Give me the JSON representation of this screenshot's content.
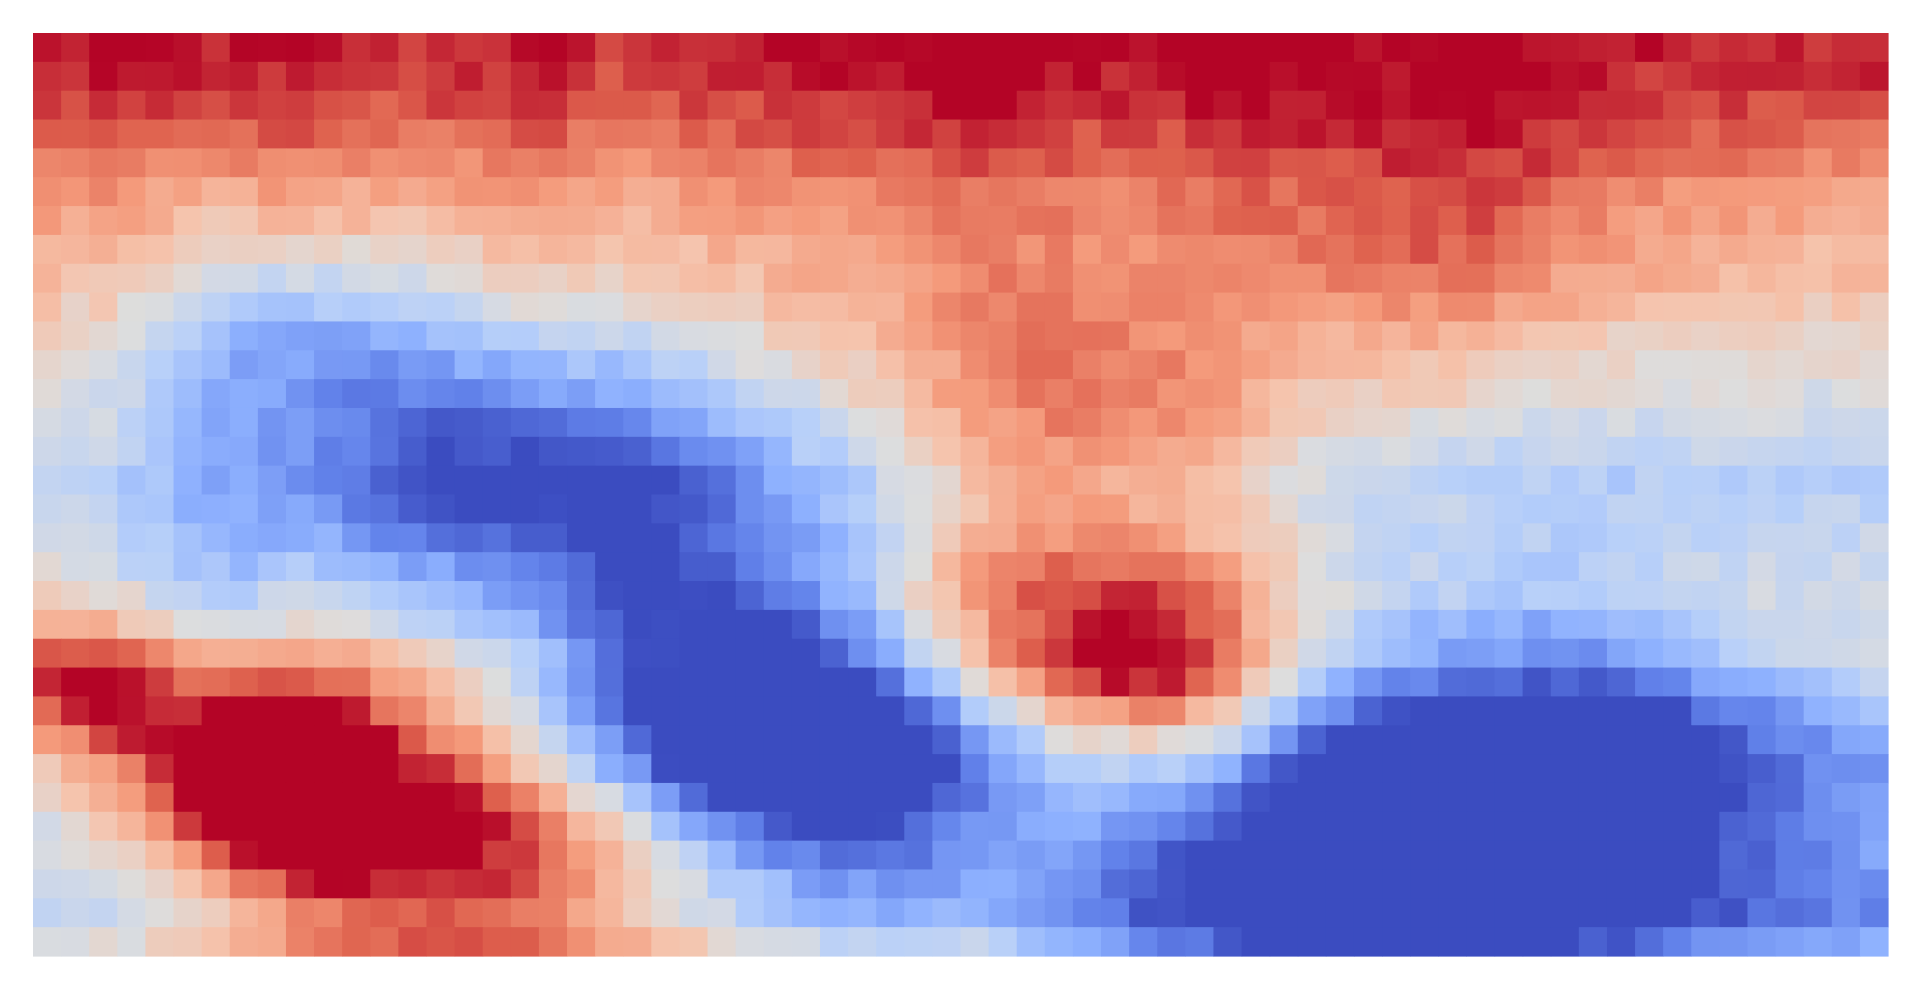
{
  "chart_data": {
    "type": "heatmap",
    "title": "",
    "xlabel": "",
    "ylabel": "",
    "rows": 32,
    "cols": 66,
    "colormap": "coolwarm",
    "value_range": [
      -1,
      1
    ],
    "colorbar": false,
    "axes_visible": false,
    "row_profile": [
      0.92,
      0.88,
      0.82,
      0.72,
      0.62,
      0.52,
      0.45,
      0.38,
      0.32,
      0.25,
      0.16,
      0.1,
      0.03,
      -0.05,
      -0.12,
      -0.18,
      -0.14,
      -0.08,
      0.0,
      0.05,
      0.02,
      0.05,
      -0.05,
      -0.2,
      -0.3,
      -0.35,
      -0.3,
      -0.3,
      -0.35,
      -0.4,
      -0.45,
      -0.28
    ],
    "col_profile": [
      0.0,
      0.0,
      0.02,
      0.0,
      -0.02,
      -0.05,
      -0.06,
      -0.04,
      0.0,
      0.02,
      0.0,
      -0.02,
      -0.05,
      -0.05,
      -0.03,
      -0.02,
      0.0,
      0.02,
      0.02,
      -0.02,
      -0.05,
      -0.05,
      -0.04,
      -0.02,
      0.0,
      0.02,
      0.04,
      0.05,
      0.06,
      0.08,
      0.1,
      0.12,
      0.14,
      0.15,
      0.15,
      0.12,
      0.1,
      0.08,
      0.06,
      0.08,
      0.1,
      0.12,
      0.14,
      0.12,
      0.1,
      0.08,
      0.06,
      0.04,
      0.04,
      0.05,
      0.04,
      0.02,
      0.0,
      -0.02,
      -0.04,
      -0.05,
      -0.05,
      -0.04,
      -0.03,
      -0.02,
      -0.02,
      -0.03,
      -0.04,
      -0.05,
      -0.05,
      -0.05
    ],
    "features": [
      {
        "row": 1,
        "col": 5,
        "radius": 2.0,
        "amp": 0.08
      },
      {
        "row": 1,
        "col": 64,
        "radius": 2.0,
        "amp": 0.06
      },
      {
        "row": 2,
        "col": 52,
        "radius": 3.0,
        "amp": 0.1
      },
      {
        "row": 7,
        "col": 50,
        "radius": 3.0,
        "amp": 0.3
      },
      {
        "row": 12,
        "col": 37,
        "radius": 3.0,
        "amp": 0.3
      },
      {
        "row": 13,
        "col": 37,
        "radius": 3.0,
        "amp": 0.25
      },
      {
        "row": 10,
        "col": 8,
        "radius": 2.5,
        "amp": -0.5
      },
      {
        "row": 13,
        "col": 15,
        "radius": 3.5,
        "amp": -0.35
      },
      {
        "row": 15,
        "col": 14,
        "radius": 4.0,
        "amp": -0.35
      },
      {
        "row": 16,
        "col": 20,
        "radius": 3.0,
        "amp": -0.25
      },
      {
        "row": 19,
        "col": 6,
        "radius": 2.5,
        "amp": -0.35
      },
      {
        "row": 20,
        "col": 35,
        "radius": 3.5,
        "amp": 0.45
      },
      {
        "row": 21,
        "col": 37,
        "radius": 3.0,
        "amp": 0.45
      },
      {
        "row": 22,
        "col": 40,
        "radius": 2.0,
        "amp": 0.55
      },
      {
        "row": 21,
        "col": 25,
        "radius": 5.0,
        "amp": -0.55
      },
      {
        "row": 22,
        "col": 22,
        "radius": 4.0,
        "amp": -0.45
      },
      {
        "row": 22,
        "col": 1,
        "radius": 1.5,
        "amp": 0.55
      },
      {
        "row": 23,
        "col": 2,
        "radius": 2.0,
        "amp": 0.5
      },
      {
        "row": 24,
        "col": 8,
        "radius": 2.5,
        "amp": 0.55
      },
      {
        "row": 25,
        "col": 7,
        "radius": 1.3,
        "amp": 0.75
      },
      {
        "row": 26,
        "col": 9,
        "radius": 2.5,
        "amp": 0.65
      },
      {
        "row": 24,
        "col": 26,
        "radius": 3.0,
        "amp": -0.65
      },
      {
        "row": 25,
        "col": 30,
        "radius": 3.0,
        "amp": -0.6
      },
      {
        "row": 24,
        "col": 50,
        "radius": 4.0,
        "amp": -0.6
      },
      {
        "row": 25,
        "col": 56,
        "radius": 3.0,
        "amp": -0.5
      },
      {
        "row": 27,
        "col": 14,
        "radius": 4.0,
        "amp": 0.55
      },
      {
        "row": 28,
        "col": 14,
        "radius": 4.5,
        "amp": 0.45
      },
      {
        "row": 29,
        "col": 20,
        "radius": 4.0,
        "amp": 0.35
      },
      {
        "row": 29,
        "col": 43,
        "radius": 3.0,
        "amp": -0.4
      },
      {
        "row": 30,
        "col": 46,
        "radius": 4.0,
        "amp": -0.45
      },
      {
        "row": 30,
        "col": 55,
        "radius": 6.0,
        "amp": -0.35
      },
      {
        "row": 31,
        "col": 12,
        "radius": 10.0,
        "amp": 0.2
      }
    ]
  }
}
